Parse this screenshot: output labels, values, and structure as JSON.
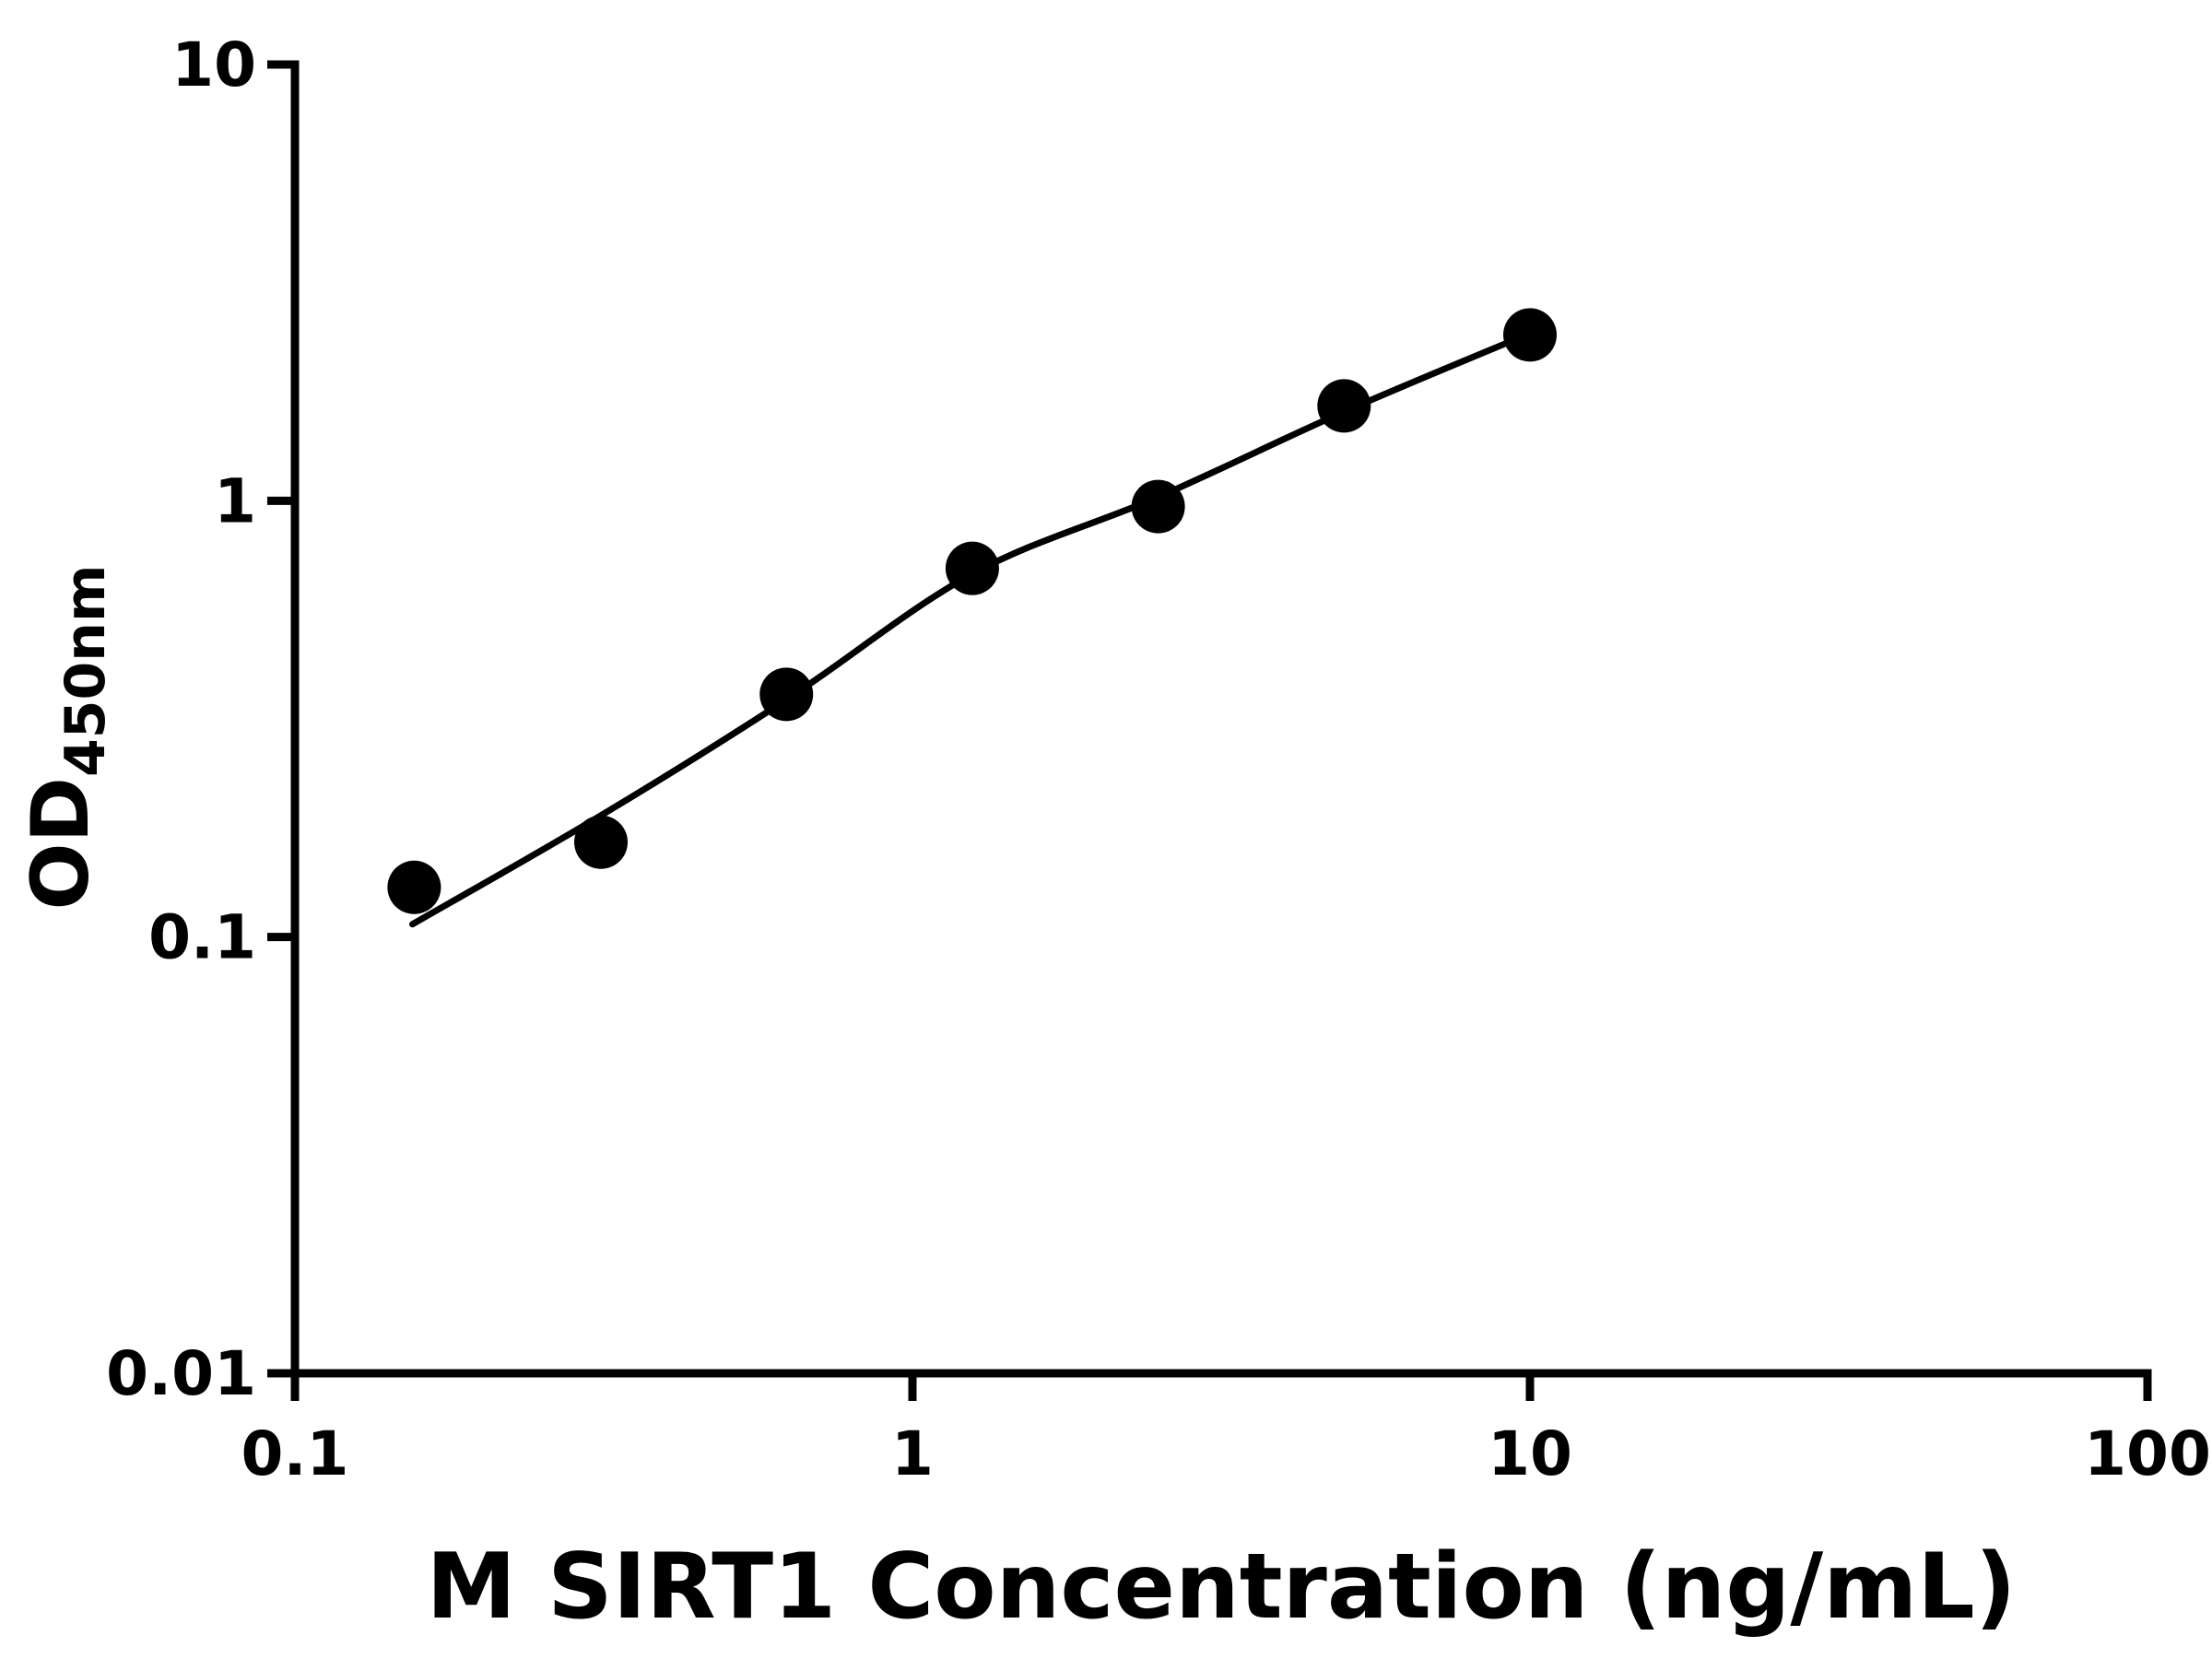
{
  "page": {
    "background_color": "#ffffff",
    "foreground_color": "#000000"
  },
  "chart_data": {
    "type": "scatter",
    "title": "",
    "xlabel": "M SIRT1 Concentration (ng/mL)",
    "ylabel_main": "OD",
    "ylabel_sub": "450nm",
    "x_scale": "log",
    "y_scale": "log",
    "xlim": [
      0.1,
      100
    ],
    "ylim": [
      0.01,
      10
    ],
    "x_ticks": [
      0.1,
      1,
      10,
      100
    ],
    "x_tick_labels": [
      "0.1",
      "1",
      "10",
      "100"
    ],
    "y_ticks": [
      0.01,
      0.1,
      1,
      10
    ],
    "y_tick_labels": [
      "0.01",
      "0.1",
      "1",
      "10"
    ],
    "grid": false,
    "legend": "none",
    "marker_color": "#000000",
    "line_color": "#000000",
    "axis_color": "#000000",
    "points": [
      {
        "x": 0.156,
        "y": 0.13
      },
      {
        "x": 0.313,
        "y": 0.165
      },
      {
        "x": 0.625,
        "y": 0.36
      },
      {
        "x": 1.25,
        "y": 0.7
      },
      {
        "x": 2.5,
        "y": 0.97
      },
      {
        "x": 5,
        "y": 1.65
      },
      {
        "x": 10,
        "y": 2.4
      }
    ],
    "fit_curve": [
      {
        "x": 0.155,
        "y": 0.107
      },
      {
        "x": 0.313,
        "y": 0.19
      },
      {
        "x": 0.625,
        "y": 0.35
      },
      {
        "x": 1.25,
        "y": 0.68
      },
      {
        "x": 2.5,
        "y": 1.02
      },
      {
        "x": 5,
        "y": 1.6
      },
      {
        "x": 10,
        "y": 2.42
      }
    ]
  }
}
